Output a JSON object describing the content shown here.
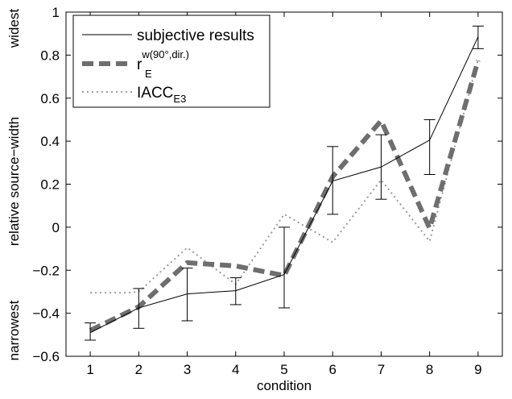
{
  "chart_data": {
    "type": "line",
    "xlabel": "condition",
    "ylabel": "relative source−width",
    "ylabel_top": "widest",
    "ylabel_bottom": "narrowest",
    "x": [
      1,
      2,
      3,
      4,
      5,
      6,
      7,
      8,
      9
    ],
    "xlim": [
      0.5,
      9.5
    ],
    "ylim": [
      -0.6,
      1
    ],
    "xticks": [
      "1",
      "2",
      "3",
      "4",
      "5",
      "6",
      "7",
      "8",
      "9"
    ],
    "yticks": [
      "−0.6",
      "−0.4",
      "−0.2",
      "0",
      "0.2",
      "0.4",
      "0.6",
      "0.8",
      "1"
    ],
    "ytick_values": [
      -0.6,
      -0.4,
      -0.2,
      0,
      0.2,
      0.4,
      0.6,
      0.8,
      1
    ],
    "grid": false,
    "legend_position": "top-left",
    "series": [
      {
        "key": "subjective",
        "name": "subjective results",
        "style": "solid",
        "color": "#000000",
        "values": [
          -0.49,
          -0.375,
          -0.31,
          -0.295,
          -0.22,
          0.215,
          0.28,
          0.405,
          0.885
        ],
        "error_low": [
          -0.525,
          -0.47,
          -0.435,
          -0.36,
          -0.375,
          0.06,
          0.13,
          0.245,
          0.83
        ],
        "error_high": [
          -0.445,
          -0.285,
          -0.19,
          -0.235,
          0.0,
          0.375,
          0.43,
          0.5,
          0.935
        ]
      },
      {
        "key": "rE",
        "name_main": "r",
        "name_sub": "E",
        "name_sup": "w(90°,dir.)",
        "style": "dashed",
        "color": "#6e6e6e",
        "values": [
          -0.48,
          -0.37,
          -0.165,
          -0.18,
          -0.225,
          0.235,
          0.495,
          -0.005,
          0.775
        ]
      },
      {
        "key": "iacc",
        "name_main": "IACC",
        "name_sub": "E3",
        "style": "dotted",
        "color": "#9a9a9a",
        "values": [
          -0.305,
          -0.3,
          -0.095,
          -0.265,
          0.06,
          -0.07,
          0.22,
          -0.065,
          0.78
        ],
        "step_x": [
          1,
          1.75,
          2,
          3,
          4,
          5,
          6,
          7,
          8,
          9
        ],
        "step_values": [
          -0.305,
          -0.305,
          -0.3,
          -0.095,
          -0.265,
          0.06,
          -0.07,
          0.22,
          -0.065,
          0.78
        ]
      }
    ]
  }
}
